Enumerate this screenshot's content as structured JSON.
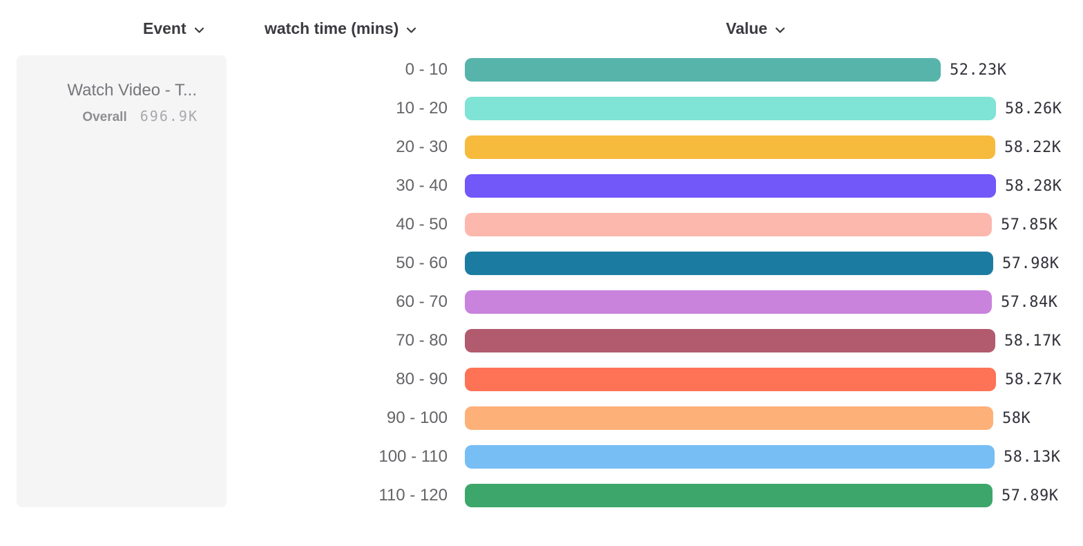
{
  "header": {
    "columns": [
      {
        "label": "Event"
      },
      {
        "label": "watch time (mins)"
      },
      {
        "label": "Value"
      }
    ]
  },
  "event_card": {
    "title": "Watch Video - T...",
    "overall_label": "Overall",
    "overall_value": "696.9K"
  },
  "chart_data": {
    "type": "bar",
    "orientation": "horizontal",
    "title": "",
    "xlabel": "Value",
    "ylabel": "watch time (mins)",
    "xlim": [
      0,
      58280
    ],
    "grid": false,
    "categories": [
      "0 - 10",
      "10 - 20",
      "20 - 30",
      "30 - 40",
      "40 - 50",
      "50 - 60",
      "60 - 70",
      "70 - 80",
      "80 - 90",
      "90 - 100",
      "100 - 110",
      "110 - 120"
    ],
    "values": [
      52230,
      58260,
      58220,
      58280,
      57850,
      57980,
      57840,
      58170,
      58270,
      58000,
      58130,
      57890
    ],
    "value_labels": [
      "52.23K",
      "58.26K",
      "58.22K",
      "58.28K",
      "57.85K",
      "57.98K",
      "57.84K",
      "58.17K",
      "58.27K",
      "58K",
      "58.13K",
      "57.89K"
    ],
    "colors": [
      "#57b4ab",
      "#7fe3d5",
      "#f6ba3d",
      "#7257f9",
      "#fdb8ae",
      "#1c7ba0",
      "#c983dd",
      "#b25a6e",
      "#fe7256",
      "#fdb178",
      "#77bef5",
      "#3da76b"
    ]
  }
}
